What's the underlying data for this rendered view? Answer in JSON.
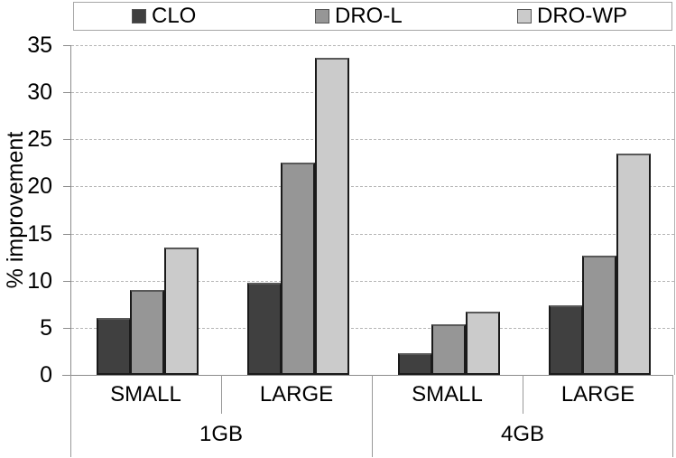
{
  "chart_data": {
    "type": "bar",
    "title": "",
    "ylabel": "% improvement",
    "ylim": [
      0,
      35
    ],
    "ytick_interval": 5,
    "yticks": [
      0,
      5,
      10,
      15,
      20,
      25,
      30,
      35
    ],
    "grid": "horizontal dashed",
    "legend_position": "top",
    "group_labels": [
      "SMALL",
      "LARGE",
      "SMALL",
      "LARGE"
    ],
    "super_group_labels": [
      "1GB",
      "4GB"
    ],
    "series": [
      {
        "name": "CLO",
        "color": "#404040",
        "values": [
          6.0,
          9.8,
          2.3,
          7.4
        ]
      },
      {
        "name": "DRO-L",
        "color": "#969696",
        "values": [
          9.0,
          22.5,
          5.4,
          12.7
        ]
      },
      {
        "name": "DRO-WP",
        "color": "#cbcbcb",
        "values": [
          13.5,
          33.7,
          6.7,
          23.5
        ]
      }
    ]
  },
  "colors": {
    "background": "#ffffff",
    "text": "#000000",
    "axis": "#8c8c8c",
    "gridline": "#b5b5b5",
    "bar_border": "#1a1a1a",
    "legend_border": "#a6a6a6",
    "category_divider": "#999999"
  }
}
